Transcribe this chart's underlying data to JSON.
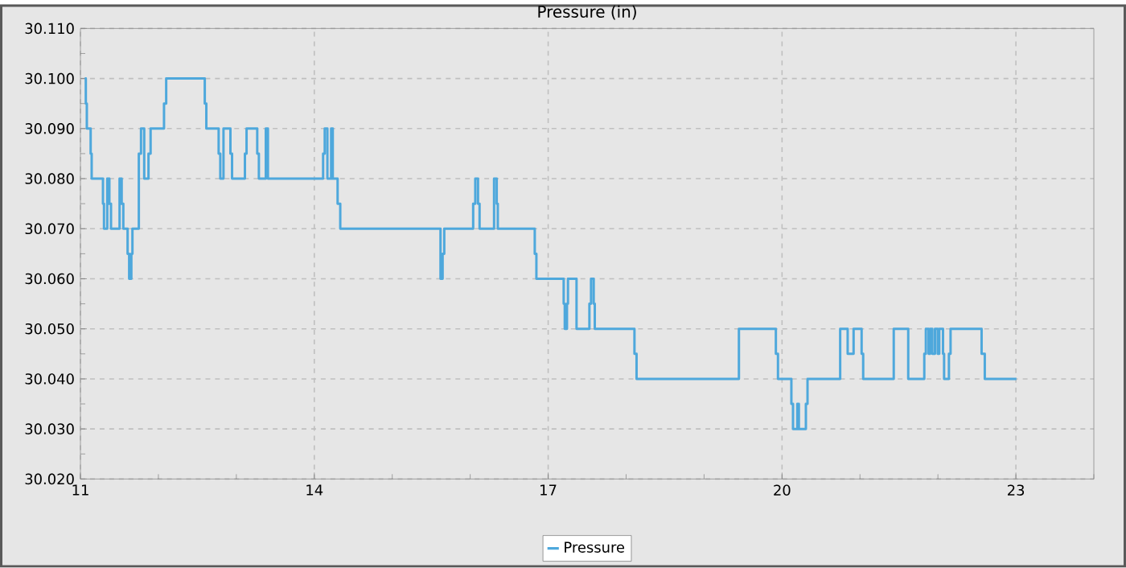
{
  "chart_data": {
    "type": "step",
    "title": "Pressure (in)",
    "xlim": [
      11,
      24
    ],
    "xticks": [
      11,
      {
        "value": 12,
        "label": null
      },
      {
        "value": 13,
        "label": null
      },
      14,
      {
        "value": 15,
        "label": null
      },
      {
        "value": 16,
        "label": null
      },
      17,
      {
        "value": 18,
        "label": null
      },
      {
        "value": 19,
        "label": null
      },
      20,
      {
        "value": 21,
        "label": null
      },
      {
        "value": 22,
        "label": null
      },
      23,
      {
        "value": 24,
        "label": null
      }
    ],
    "ylim": [
      30.02,
      30.11
    ],
    "yticks": [
      {
        "value": 30.02,
        "label": "30.020"
      },
      {
        "value": 30.025,
        "label": null
      },
      {
        "value": 30.03,
        "label": "30.030"
      },
      {
        "value": 30.035,
        "label": null
      },
      {
        "value": 30.04,
        "label": "30.040"
      },
      {
        "value": 30.045,
        "label": null
      },
      {
        "value": 30.05,
        "label": "30.050"
      },
      {
        "value": 30.055,
        "label": null
      },
      {
        "value": 30.06,
        "label": "30.060"
      },
      {
        "value": 30.065,
        "label": null
      },
      {
        "value": 30.07,
        "label": "30.070"
      },
      {
        "value": 30.075,
        "label": null
      },
      {
        "value": 30.08,
        "label": "30.080"
      },
      {
        "value": 30.085,
        "label": null
      },
      {
        "value": 30.09,
        "label": "30.090"
      },
      {
        "value": 30.095,
        "label": null
      },
      {
        "value": 30.1,
        "label": "30.100"
      },
      {
        "value": 30.105,
        "label": null
      },
      {
        "value": 30.11,
        "label": "30.110"
      }
    ],
    "grid": true,
    "legend": "bottom",
    "marker": "none",
    "line_style": "solid",
    "series": [
      {
        "name": "Pressure",
        "color": "#4ea8dc",
        "x": [
          11.055,
          11.069,
          11.082,
          11.131,
          11.144,
          11.289,
          11.302,
          11.344,
          11.371,
          11.392,
          11.502,
          11.529,
          11.55,
          11.605,
          11.625,
          11.653,
          11.667,
          11.749,
          11.777,
          11.818,
          11.873,
          11.9,
          12.072,
          12.1,
          12.595,
          12.615,
          12.773,
          12.794,
          12.835,
          12.924,
          12.945,
          13.11,
          13.131,
          13.268,
          13.289,
          13.378,
          13.405,
          14.113,
          14.134,
          14.168,
          14.216,
          14.237,
          14.299,
          14.333,
          15.619,
          15.646,
          15.667,
          16.038,
          16.065,
          16.1,
          16.12,
          16.306,
          16.34,
          16.354,
          16.828,
          16.849,
          17.199,
          17.213,
          17.241,
          17.254,
          17.364,
          17.529,
          17.55,
          17.584,
          17.598,
          18.107,
          18.134,
          19.447,
          19.921,
          19.948,
          20.12,
          20.141,
          20.196,
          20.216,
          20.306,
          20.327,
          20.746,
          20.842,
          20.918,
          21.021,
          21.041,
          21.433,
          21.619,
          21.825,
          21.845,
          21.88,
          21.9,
          21.928,
          21.962,
          21.997,
          22.017,
          22.065,
          22.079,
          22.141,
          22.162,
          22.56,
          22.601,
          23.007
        ],
        "values": [
          30.1,
          30.095,
          30.09,
          30.085,
          30.08,
          30.075,
          30.07,
          30.08,
          30.075,
          30.07,
          30.08,
          30.075,
          30.07,
          30.065,
          30.06,
          30.065,
          30.07,
          30.085,
          30.09,
          30.08,
          30.085,
          30.09,
          30.095,
          30.1,
          30.095,
          30.09,
          30.085,
          30.08,
          30.09,
          30.085,
          30.08,
          30.085,
          30.09,
          30.085,
          30.08,
          30.09,
          30.08,
          30.085,
          30.09,
          30.08,
          30.09,
          30.08,
          30.075,
          30.07,
          30.06,
          30.065,
          30.07,
          30.075,
          30.08,
          30.075,
          30.07,
          30.08,
          30.075,
          30.07,
          30.065,
          30.06,
          30.055,
          30.05,
          30.055,
          30.06,
          30.05,
          30.055,
          30.06,
          30.055,
          30.05,
          30.045,
          30.04,
          30.05,
          30.045,
          30.04,
          30.035,
          30.03,
          30.035,
          30.03,
          30.035,
          30.04,
          30.05,
          30.045,
          30.05,
          30.045,
          30.04,
          30.05,
          30.04,
          30.045,
          30.05,
          30.045,
          30.05,
          30.045,
          30.05,
          30.045,
          30.05,
          30.045,
          30.04,
          30.045,
          30.05,
          30.045,
          30.04,
          30.04
        ]
      }
    ]
  }
}
